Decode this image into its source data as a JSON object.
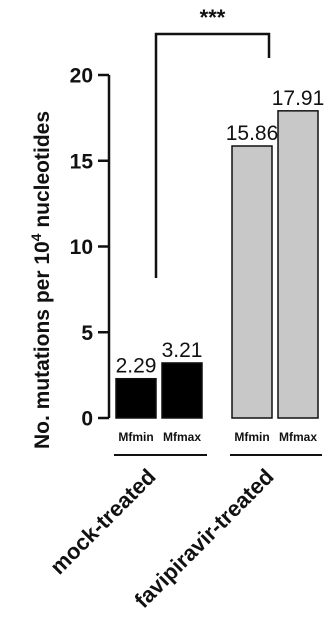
{
  "chart_data": {
    "type": "bar",
    "ylabel_prefix": "No. mutations per 10",
    "ylabel_sup": "4",
    "ylabel_suffix": " nucleotides",
    "ylim": [
      0,
      20
    ],
    "yticks": [
      0,
      5,
      10,
      15,
      20
    ],
    "groups": [
      {
        "name": "mock-treated",
        "color": "#000000",
        "bars": [
          {
            "category": "Mfmin",
            "value": 2.29,
            "label": "2.29"
          },
          {
            "category": "Mfmax",
            "value": 3.21,
            "label": "3.21"
          }
        ]
      },
      {
        "name": "favipiravir-treated",
        "color": "#c8c8c8",
        "bars": [
          {
            "category": "Mfmin",
            "value": 15.86,
            "label": "15.86"
          },
          {
            "category": "Mfmax",
            "value": 17.91,
            "label": "17.91"
          }
        ]
      }
    ],
    "significance": "***"
  }
}
